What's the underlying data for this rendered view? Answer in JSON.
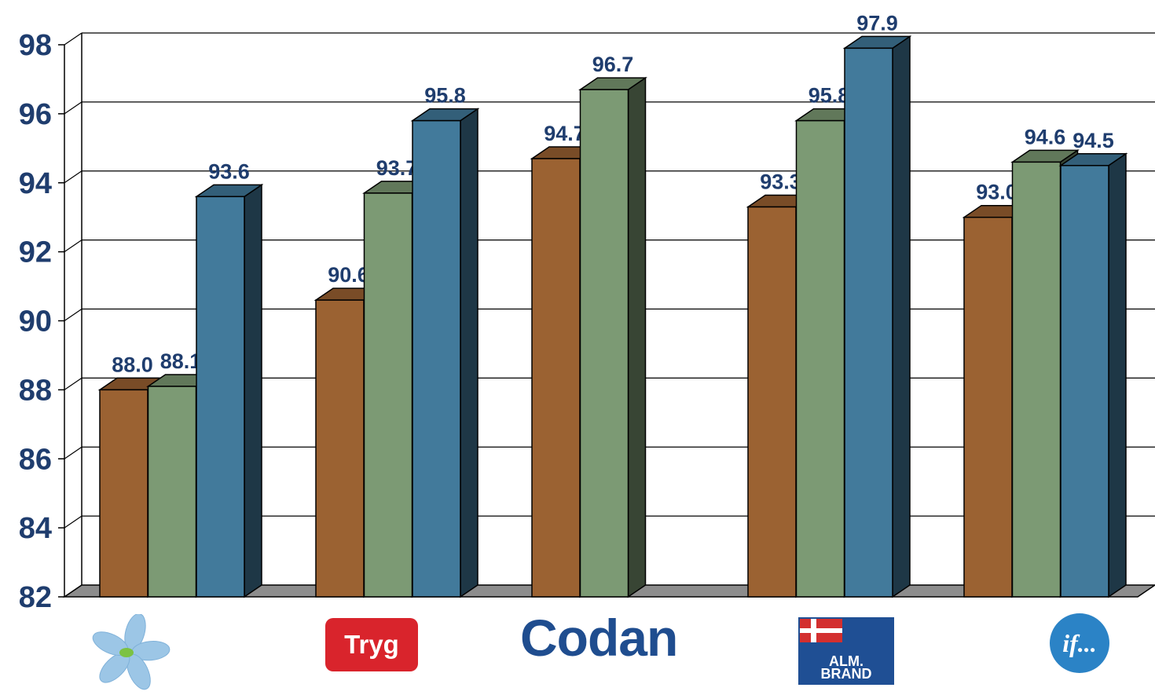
{
  "chart_data": {
    "type": "bar",
    "categories": [
      "",
      "Tryg",
      "Codan",
      "ALM. BRAND",
      "if..."
    ],
    "series": [
      {
        "color": "#9b6232",
        "values": [
          88.0,
          90.6,
          94.7,
          93.3,
          93.0
        ]
      },
      {
        "color": "#7c9a74",
        "values": [
          88.1,
          93.7,
          96.7,
          95.8,
          94.6
        ]
      },
      {
        "color": "#427a9b",
        "values": [
          93.6,
          95.8,
          null,
          97.9,
          94.5
        ]
      }
    ],
    "labels": [
      [
        "88.0",
        "88.1",
        "93.6"
      ],
      [
        "90.6",
        "93.7",
        "95.8"
      ],
      [
        "94.7",
        "96.7",
        ""
      ],
      [
        "93.3",
        "95.8",
        "97.9"
      ],
      [
        "93.0",
        "94.6",
        "94.5"
      ]
    ],
    "y_ticks": [
      "82",
      "84",
      "86",
      "88",
      "90",
      "92",
      "94",
      "96",
      "98"
    ],
    "ylim": [
      82,
      98
    ],
    "grid": true,
    "style": "3d",
    "title": "",
    "xlabel": "",
    "ylabel": "",
    "label_color": "#1f3d6e"
  },
  "logos": {
    "tryg": "Tryg",
    "codan": "Codan",
    "almbrand_line1": "ALM.",
    "almbrand_line2": "BRAND",
    "if": "if..."
  }
}
